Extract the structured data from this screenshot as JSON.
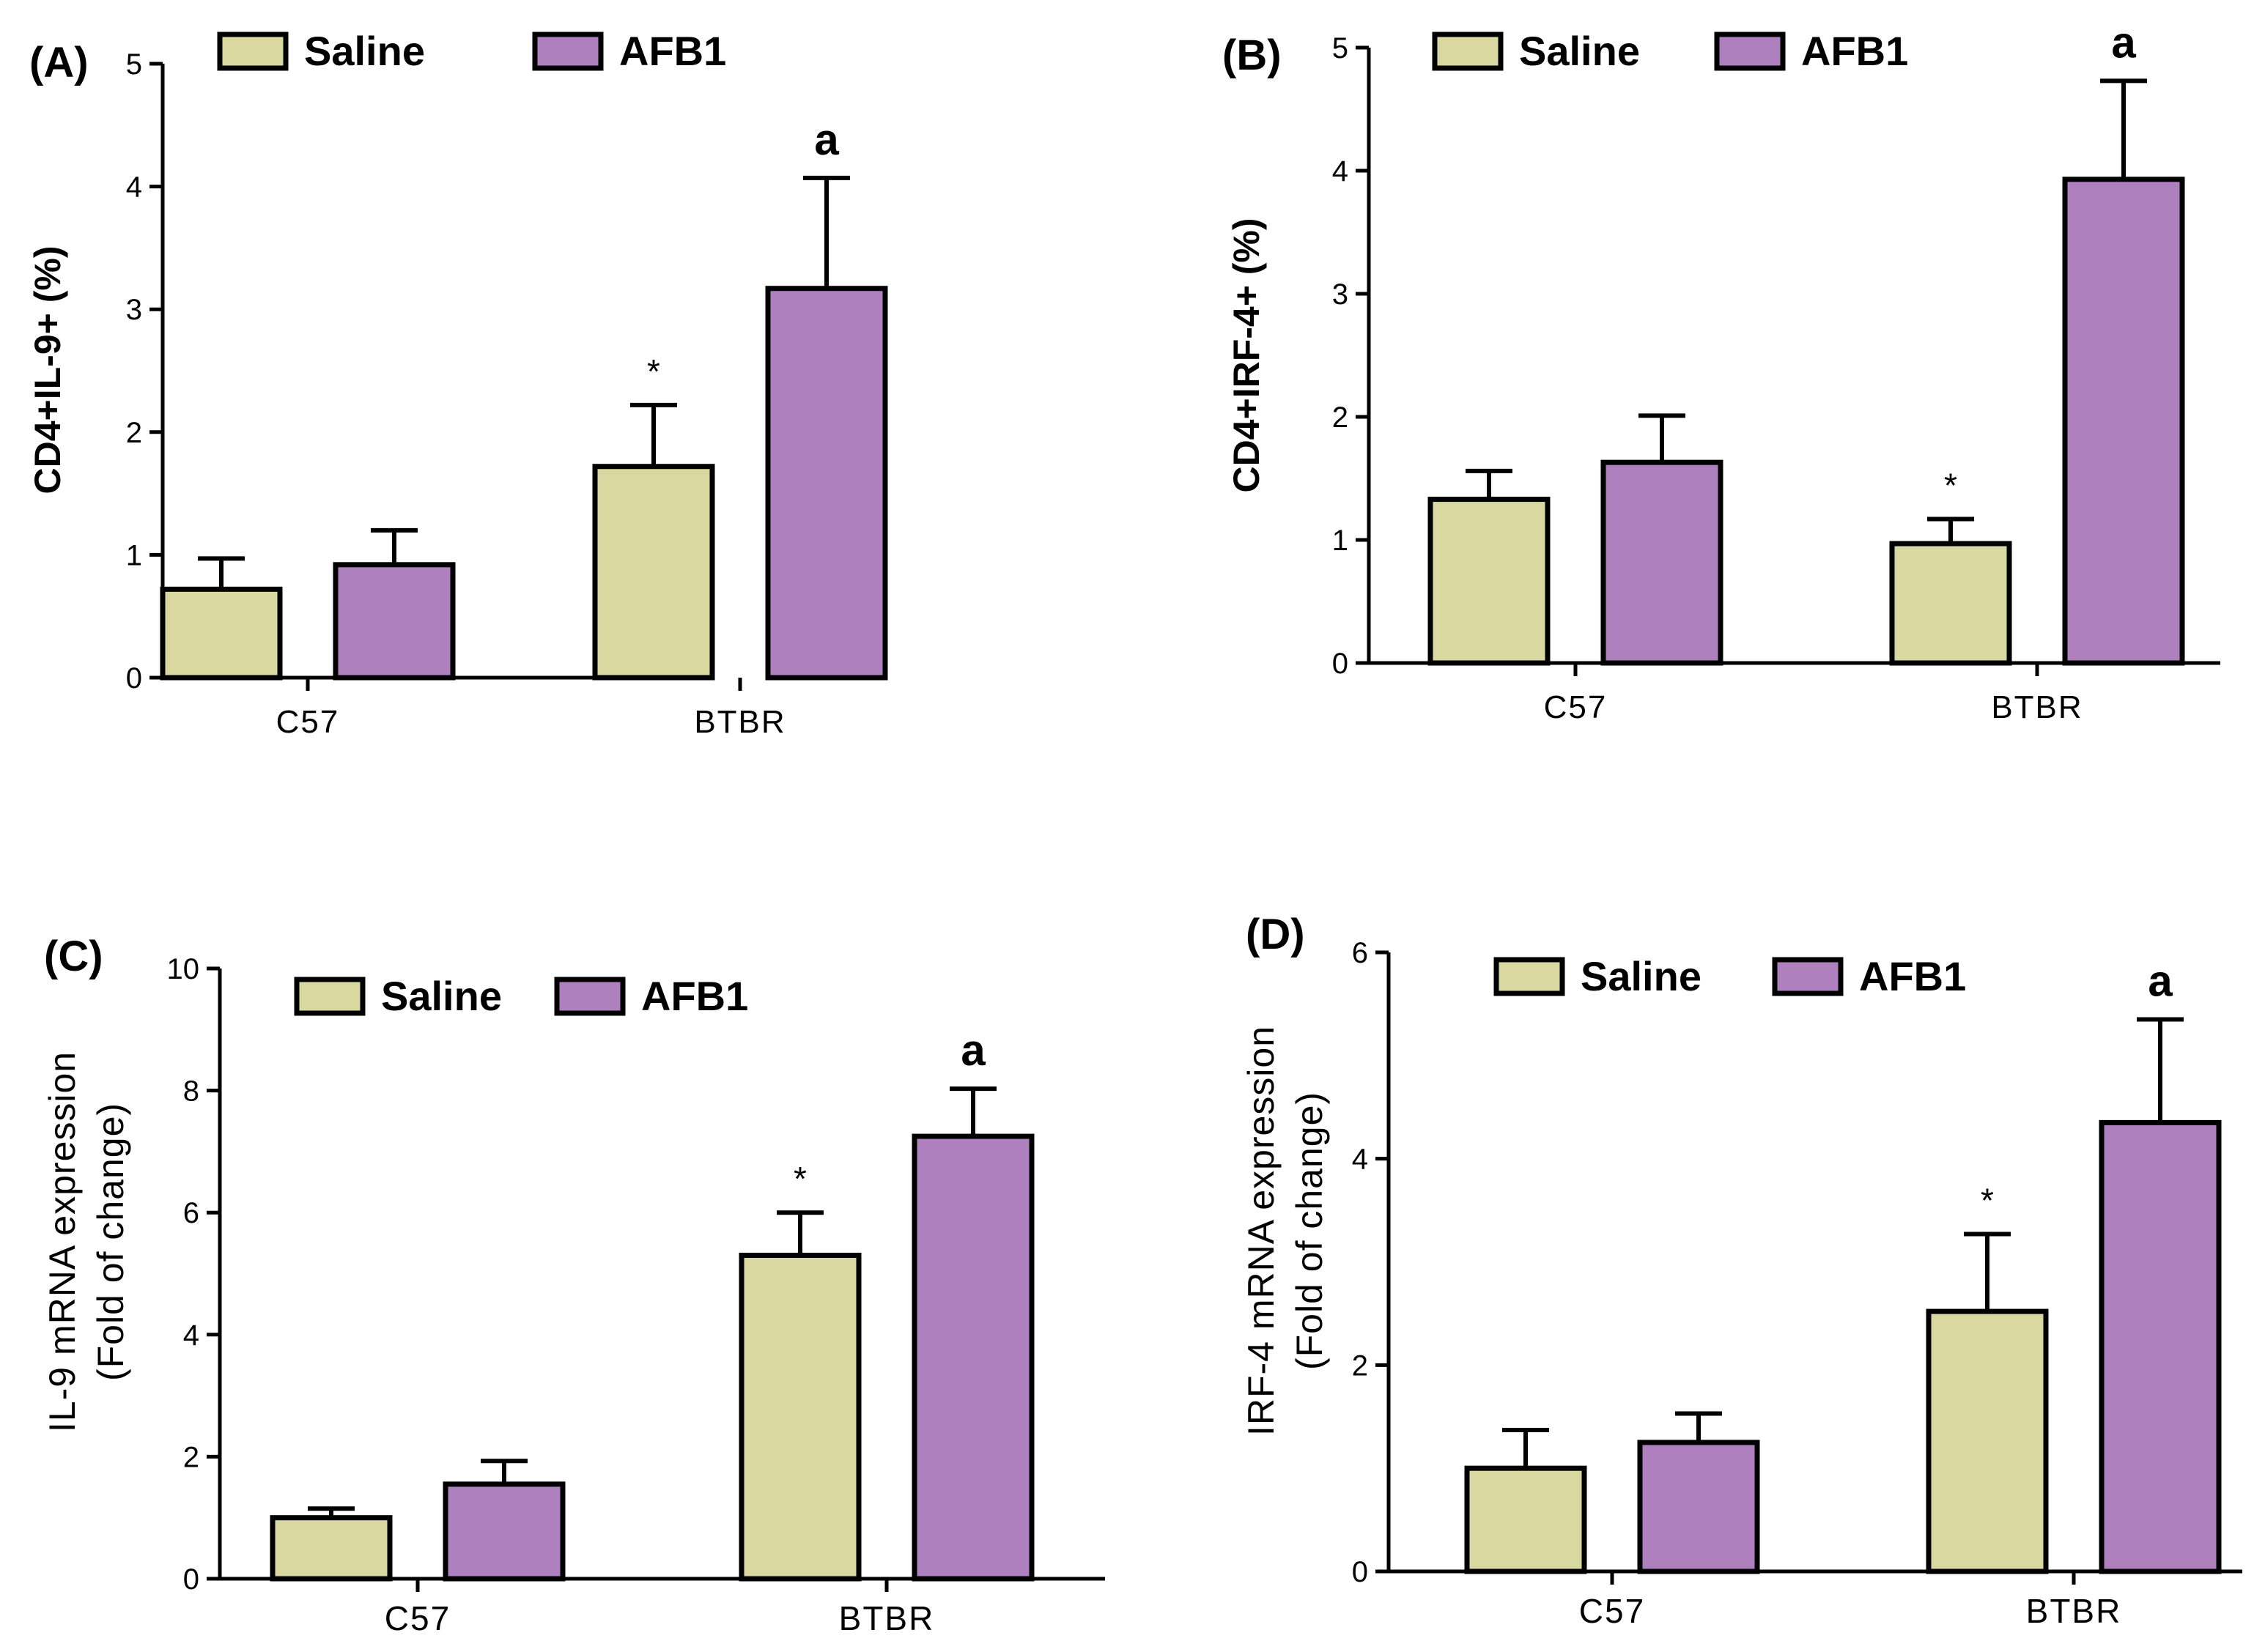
{
  "colors": {
    "saline": "#d8d8a0",
    "afb1": "#ae80be"
  },
  "chart_data": [
    {
      "panel_label": "(A)",
      "type": "bar",
      "ylabel": "CD4+IL-9+ (%)",
      "ylabel_lines": [
        "CD4+IL-9+ (%)"
      ],
      "categories": [
        "C57",
        "BTBR"
      ],
      "ylim": [
        0,
        5
      ],
      "yticks": [
        0,
        1,
        2,
        3,
        4,
        5
      ],
      "legend_location": "top",
      "series": [
        {
          "name": "Saline",
          "values": [
            0.72,
            1.72
          ],
          "errors": [
            0.25,
            0.5
          ],
          "annotations": [
            "",
            "*"
          ]
        },
        {
          "name": "AFB1",
          "values": [
            0.92,
            3.17
          ],
          "errors": [
            0.28,
            0.9
          ],
          "annotations": [
            "",
            "a"
          ]
        }
      ]
    },
    {
      "panel_label": "(B)",
      "type": "bar",
      "ylabel": "CD4+IRF-4+ (%)",
      "ylabel_lines": [
        "CD4+IRF-4+ (%)"
      ],
      "categories": [
        "C57",
        "BTBR"
      ],
      "ylim": [
        0,
        5
      ],
      "yticks": [
        0,
        1,
        2,
        3,
        4,
        5
      ],
      "legend_location": "top",
      "series": [
        {
          "name": "Saline",
          "values": [
            1.33,
            0.97
          ],
          "errors": [
            0.23,
            0.2
          ],
          "annotations": [
            "",
            "*"
          ]
        },
        {
          "name": "AFB1",
          "values": [
            1.63,
            3.93
          ],
          "errors": [
            0.38,
            0.8
          ],
          "annotations": [
            "",
            "a"
          ]
        }
      ]
    },
    {
      "panel_label": "(C)",
      "type": "bar",
      "ylabel": "IL-9 mRNA expression (Fold of change)",
      "ylabel_lines": [
        "IL-9 mRNA expression",
        "(Fold of change)"
      ],
      "categories": [
        "C57",
        "BTBR"
      ],
      "ylim": [
        0,
        10
      ],
      "yticks": [
        0,
        2,
        4,
        6,
        8,
        10
      ],
      "legend_location": "top",
      "series": [
        {
          "name": "Saline",
          "values": [
            1.0,
            5.3
          ],
          "errors": [
            0.15,
            0.7
          ],
          "annotations": [
            "",
            "*"
          ]
        },
        {
          "name": "AFB1",
          "values": [
            1.55,
            7.25
          ],
          "errors": [
            0.38,
            0.78
          ],
          "annotations": [
            "",
            "a"
          ]
        }
      ]
    },
    {
      "panel_label": "(D)",
      "type": "bar",
      "ylabel": "IRF-4 mRNA expression (Fold of change)",
      "ylabel_lines": [
        "IRF-4 mRNA expression",
        "(Fold of change)"
      ],
      "categories": [
        "C57",
        "BTBR"
      ],
      "ylim": [
        0,
        6
      ],
      "yticks": [
        0,
        2,
        4,
        6
      ],
      "legend_location": "top",
      "series": [
        {
          "name": "Saline",
          "values": [
            1.0,
            2.52
          ],
          "errors": [
            0.37,
            0.75
          ],
          "annotations": [
            "",
            "*"
          ]
        },
        {
          "name": "AFB1",
          "values": [
            1.25,
            4.35
          ],
          "errors": [
            0.28,
            1.0
          ],
          "annotations": [
            "",
            "a"
          ]
        }
      ]
    }
  ]
}
